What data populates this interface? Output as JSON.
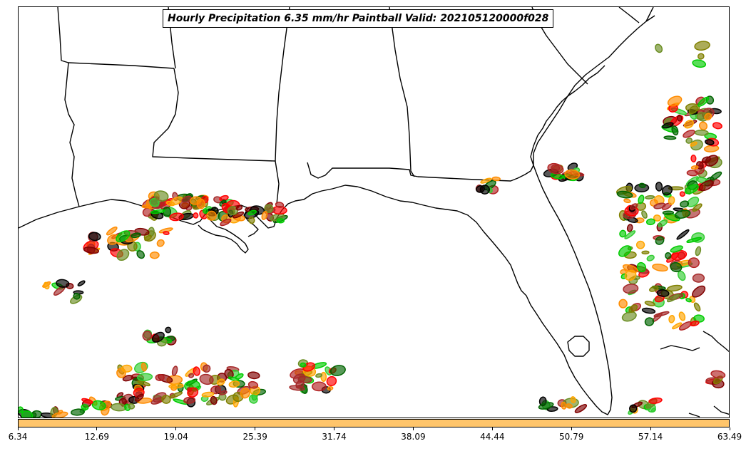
{
  "title": "Hourly Precipitation 6.35 mm/hr Paintball Valid: 202105120000f028",
  "colorbar": {
    "color": "#ffc56b",
    "ticks": [
      "6.34",
      "12.69",
      "19.04",
      "25.39",
      "31.74",
      "38.09",
      "44.44",
      "50.79",
      "57.14",
      "63.49"
    ]
  },
  "colors": {
    "coastline": "#000000",
    "member_colors": [
      "#ff0000",
      "#ff8c00",
      "#808000",
      "#00cc00",
      "#006400",
      "#800000",
      "#a52a2a",
      "#ffa500",
      "#000000",
      "#6b8e23",
      "#32cd32",
      "#b22222"
    ]
  }
}
